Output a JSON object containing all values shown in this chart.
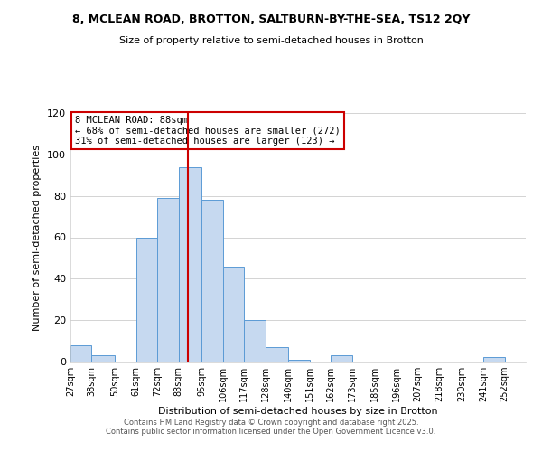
{
  "title": "8, MCLEAN ROAD, BROTTON, SALTBURN-BY-THE-SEA, TS12 2QY",
  "subtitle": "Size of property relative to semi-detached houses in Brotton",
  "xlabel": "Distribution of semi-detached houses by size in Brotton",
  "ylabel": "Number of semi-detached properties",
  "bin_labels": [
    "27sqm",
    "38sqm",
    "50sqm",
    "61sqm",
    "72sqm",
    "83sqm",
    "95sqm",
    "106sqm",
    "117sqm",
    "128sqm",
    "140sqm",
    "151sqm",
    "162sqm",
    "173sqm",
    "185sqm",
    "196sqm",
    "207sqm",
    "218sqm",
    "230sqm",
    "241sqm",
    "252sqm"
  ],
  "bin_edges": [
    27,
    38,
    50,
    61,
    72,
    83,
    95,
    106,
    117,
    128,
    140,
    151,
    162,
    173,
    185,
    196,
    207,
    218,
    230,
    241,
    252
  ],
  "bar_heights": [
    8,
    3,
    0,
    60,
    79,
    94,
    78,
    46,
    20,
    7,
    1,
    0,
    3,
    0,
    0,
    0,
    0,
    0,
    0,
    2
  ],
  "bar_color": "#c6d9f0",
  "bar_edge_color": "#5b9bd5",
  "vline_x": 88,
  "vline_color": "#cc0000",
  "annotation_title": "8 MCLEAN ROAD: 88sqm",
  "annotation_line1": "← 68% of semi-detached houses are smaller (272)",
  "annotation_line2": "31% of semi-detached houses are larger (123) →",
  "annotation_box_color": "#ffffff",
  "annotation_box_edge": "#cc0000",
  "ylim": [
    0,
    120
  ],
  "background_color": "#ffffff",
  "footer1": "Contains HM Land Registry data © Crown copyright and database right 2025.",
  "footer2": "Contains public sector information licensed under the Open Government Licence v3.0."
}
